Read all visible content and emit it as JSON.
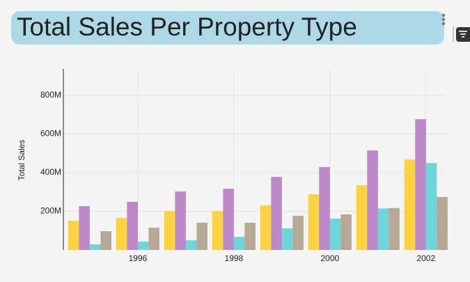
{
  "chart_data": {
    "type": "bar",
    "title": "Total Sales Per Property Type",
    "y_label": "Total Sales",
    "x": [
      1995,
      1996,
      1997,
      1998,
      1999,
      2000,
      2001,
      2002
    ],
    "xlim": [
      1994.45,
      2002.38
    ],
    "xticks": [
      1996,
      1998,
      2000,
      2002
    ],
    "series": [
      {
        "color": "#fbd33f",
        "values": [
          151000000,
          166000000,
          202000000,
          202000000,
          231000000,
          288000000,
          335000000,
          468000000
        ]
      },
      {
        "color": "#bd88c8",
        "values": [
          227000000,
          249000000,
          303000000,
          317000000,
          378000000,
          429000000,
          515000000,
          677000000
        ]
      },
      {
        "color": "#6ed6da",
        "values": [
          29000000,
          43000000,
          50000000,
          68000000,
          112000000,
          162000000,
          215000000,
          450000000
        ]
      },
      {
        "color": "#b7a896",
        "values": [
          97000000,
          115000000,
          141000000,
          141000000,
          177000000,
          184000000,
          217000000,
          274000000
        ]
      }
    ],
    "ylim": [
      0,
      937000000
    ],
    "yticks": [
      {
        "value": 200000000,
        "label": "200M"
      },
      {
        "value": 400000000,
        "label": "400M"
      },
      {
        "value": 600000000,
        "label": "600M"
      },
      {
        "value": 800000000,
        "label": "800M"
      }
    ],
    "grid": true
  }
}
